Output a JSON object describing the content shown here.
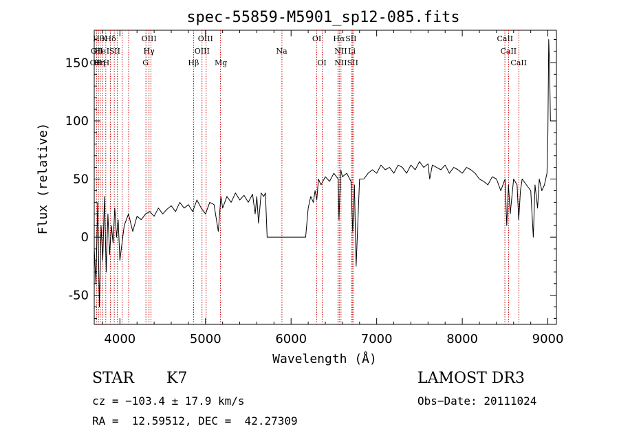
{
  "chart_data": {
    "type": "line",
    "title": "spec-55859-M5901_sp12-085.fits",
    "xlabel": "Wavelength (Å)",
    "ylabel": "Flux (relative)",
    "xlim": [
      3700,
      9100
    ],
    "ylim": [
      -75,
      178
    ],
    "x_ticks": [
      4000,
      5000,
      6000,
      7000,
      8000,
      9000
    ],
    "y_ticks": [
      -50,
      0,
      50,
      100,
      150
    ],
    "grid": false,
    "series": [
      {
        "name": "flux",
        "x": [
          3700,
          3720,
          3740,
          3760,
          3780,
          3800,
          3820,
          3840,
          3860,
          3880,
          3900,
          3920,
          3940,
          3960,
          3980,
          4000,
          4050,
          4100,
          4150,
          4200,
          4250,
          4300,
          4350,
          4400,
          4450,
          4500,
          4550,
          4600,
          4650,
          4700,
          4750,
          4800,
          4850,
          4900,
          4950,
          5000,
          5050,
          5100,
          5150,
          5180,
          5200,
          5250,
          5300,
          5350,
          5400,
          5450,
          5500,
          5550,
          5580,
          5600,
          5620,
          5650,
          5680,
          5700,
          5720,
          6170,
          6200,
          6230,
          6260,
          6280,
          6300,
          6320,
          6350,
          6400,
          6450,
          6500,
          6550,
          6560,
          6580,
          6600,
          6650,
          6700,
          6720,
          6740,
          6760,
          6800,
          6850,
          6900,
          6950,
          7000,
          7050,
          7100,
          7150,
          7200,
          7250,
          7300,
          7350,
          7400,
          7450,
          7500,
          7550,
          7600,
          7620,
          7650,
          7700,
          7750,
          7800,
          7850,
          7900,
          7950,
          8000,
          8050,
          8100,
          8150,
          8200,
          8250,
          8300,
          8350,
          8400,
          8450,
          8500,
          8520,
          8540,
          8560,
          8600,
          8640,
          8660,
          8680,
          8700,
          8750,
          8800,
          8830,
          8850,
          8880,
          8900,
          8930,
          8960,
          8990,
          9000,
          9010,
          9020,
          9030
        ],
        "values": [
          -10,
          -40,
          30,
          -60,
          10,
          -20,
          35,
          -30,
          20,
          -15,
          10,
          -5,
          25,
          0,
          15,
          -20,
          10,
          20,
          5,
          18,
          15,
          20,
          22,
          18,
          25,
          20,
          24,
          27,
          22,
          30,
          25,
          28,
          22,
          32,
          25,
          20,
          30,
          28,
          5,
          35,
          25,
          35,
          30,
          38,
          32,
          36,
          30,
          37,
          20,
          35,
          12,
          38,
          35,
          38,
          0,
          0,
          25,
          35,
          30,
          40,
          32,
          50,
          45,
          52,
          48,
          55,
          50,
          15,
          58,
          52,
          55,
          48,
          5,
          45,
          -25,
          50,
          50,
          55,
          58,
          55,
          62,
          58,
          60,
          55,
          62,
          60,
          55,
          62,
          58,
          65,
          60,
          63,
          50,
          62,
          60,
          58,
          62,
          55,
          60,
          58,
          55,
          60,
          58,
          55,
          50,
          48,
          45,
          52,
          50,
          40,
          50,
          10,
          45,
          20,
          50,
          45,
          15,
          40,
          50,
          45,
          40,
          0,
          45,
          25,
          50,
          40,
          45,
          55,
          90,
          170,
          150,
          100
        ]
      }
    ],
    "line_labels": {
      "upper": [
        {
          "x": 3750,
          "text": "Hθ"
        },
        {
          "x": 3820,
          "text": "K"
        },
        {
          "x": 3890,
          "text": "Hδ"
        },
        {
          "x": 4340,
          "text": "OIII"
        },
        {
          "x": 5000,
          "text": "OIII"
        },
        {
          "x": 6300,
          "text": "OI"
        },
        {
          "x": 6560,
          "text": "Hα"
        },
        {
          "x": 6700,
          "text": "SII"
        },
        {
          "x": 8500,
          "text": "CaII"
        }
      ],
      "middle": [
        {
          "x": 3730,
          "text": "OII"
        },
        {
          "x": 3770,
          "text": "He"
        },
        {
          "x": 3860,
          "text": "I"
        },
        {
          "x": 3940,
          "text": "SII"
        },
        {
          "x": 4340,
          "text": "Hγ"
        },
        {
          "x": 4960,
          "text": "OIII"
        },
        {
          "x": 5890,
          "text": "Na"
        },
        {
          "x": 6580,
          "text": "NII"
        },
        {
          "x": 6710,
          "text": "Li"
        },
        {
          "x": 8540,
          "text": "CaII"
        }
      ],
      "lower": [
        {
          "x": 3720,
          "text": "OII"
        },
        {
          "x": 3760,
          "text": "Hη"
        },
        {
          "x": 3840,
          "text": "H"
        },
        {
          "x": 4300,
          "text": "G"
        },
        {
          "x": 4860,
          "text": "Hβ"
        },
        {
          "x": 5180,
          "text": "Mg"
        },
        {
          "x": 6360,
          "text": "OI"
        },
        {
          "x": 6580,
          "text": "NII"
        },
        {
          "x": 6720,
          "text": "SII"
        },
        {
          "x": 8660,
          "text": "CaII"
        }
      ]
    },
    "line_markers": [
      3727,
      3750,
      3770,
      3798,
      3835,
      3889,
      3934,
      3969,
      4026,
      4102,
      4304,
      4340,
      4363,
      4861,
      4959,
      5007,
      5175,
      5893,
      6300,
      6364,
      6548,
      6563,
      6583,
      6708,
      6716,
      6731,
      8498,
      8542,
      8662
    ],
    "marker_color": "#cc0000"
  },
  "info": {
    "object_type": "STAR",
    "subclass": "K7",
    "survey": "LAMOST DR3",
    "velocity": "cz = −103.4 ± 17.9 km/s",
    "obs_date": "Obs−Date: 20111024",
    "coords": "RA =  12.59512, DEC =  42.27309"
  }
}
